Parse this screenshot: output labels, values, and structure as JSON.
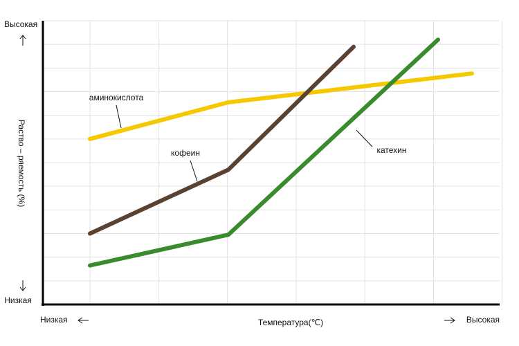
{
  "chart_data": {
    "type": "line",
    "y_label": "Раство – ряемость (%)",
    "x_label": "Температура(℃)",
    "y_high": "Высокая",
    "y_low": "Низкая",
    "x_low": "Низкая",
    "x_high": "Высокая",
    "xlim": [
      -0.68,
      5.92
    ],
    "ylim": [
      0,
      12
    ],
    "grid": true,
    "series": [
      {
        "name": "аминокислота",
        "color": "#f5c800",
        "x": [
          0,
          2,
          5.52
        ],
        "values": [
          7.0,
          8.55,
          9.77
        ]
      },
      {
        "name": "кофеин",
        "color": "#5a4232",
        "x": [
          0,
          2,
          3.81
        ],
        "values": [
          3.0,
          5.7,
          10.9
        ]
      },
      {
        "name": "катехин",
        "color": "#3a8a2e",
        "x": [
          0,
          2,
          5.03
        ],
        "values": [
          1.65,
          2.95,
          11.2
        ]
      }
    ]
  }
}
